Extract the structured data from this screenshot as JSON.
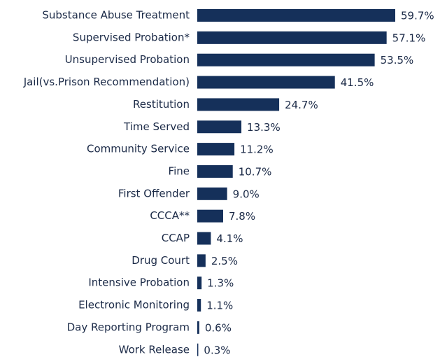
{
  "chart_data": {
    "type": "bar",
    "orientation": "horizontal",
    "color": "#15305a",
    "categories": [
      "Substance Abuse Treatment",
      "Supervised Probation*",
      "Unsupervised Probation",
      "Jail(vs.Prison Recommendation)",
      "Restitution",
      "Time Served",
      "Community Service",
      "Fine",
      "First Offender",
      "CCCA**",
      "CCAP",
      "Drug Court",
      "Intensive Probation",
      "Electronic Monitoring",
      "Day Reporting Program",
      "Work Release"
    ],
    "values": [
      59.7,
      57.1,
      53.5,
      41.5,
      24.7,
      13.3,
      11.2,
      10.7,
      9.0,
      7.8,
      4.1,
      2.5,
      1.3,
      1.1,
      0.6,
      0.3
    ],
    "value_labels": [
      "59.7%",
      "57.1%",
      "53.5%",
      "41.5%",
      "24.7%",
      "13.3%",
      "11.2%",
      "10.7%",
      "9.0%",
      "7.8%",
      "4.1%",
      "2.5%",
      "1.3%",
      "1.1%",
      "0.6%",
      "0.3%"
    ]
  }
}
